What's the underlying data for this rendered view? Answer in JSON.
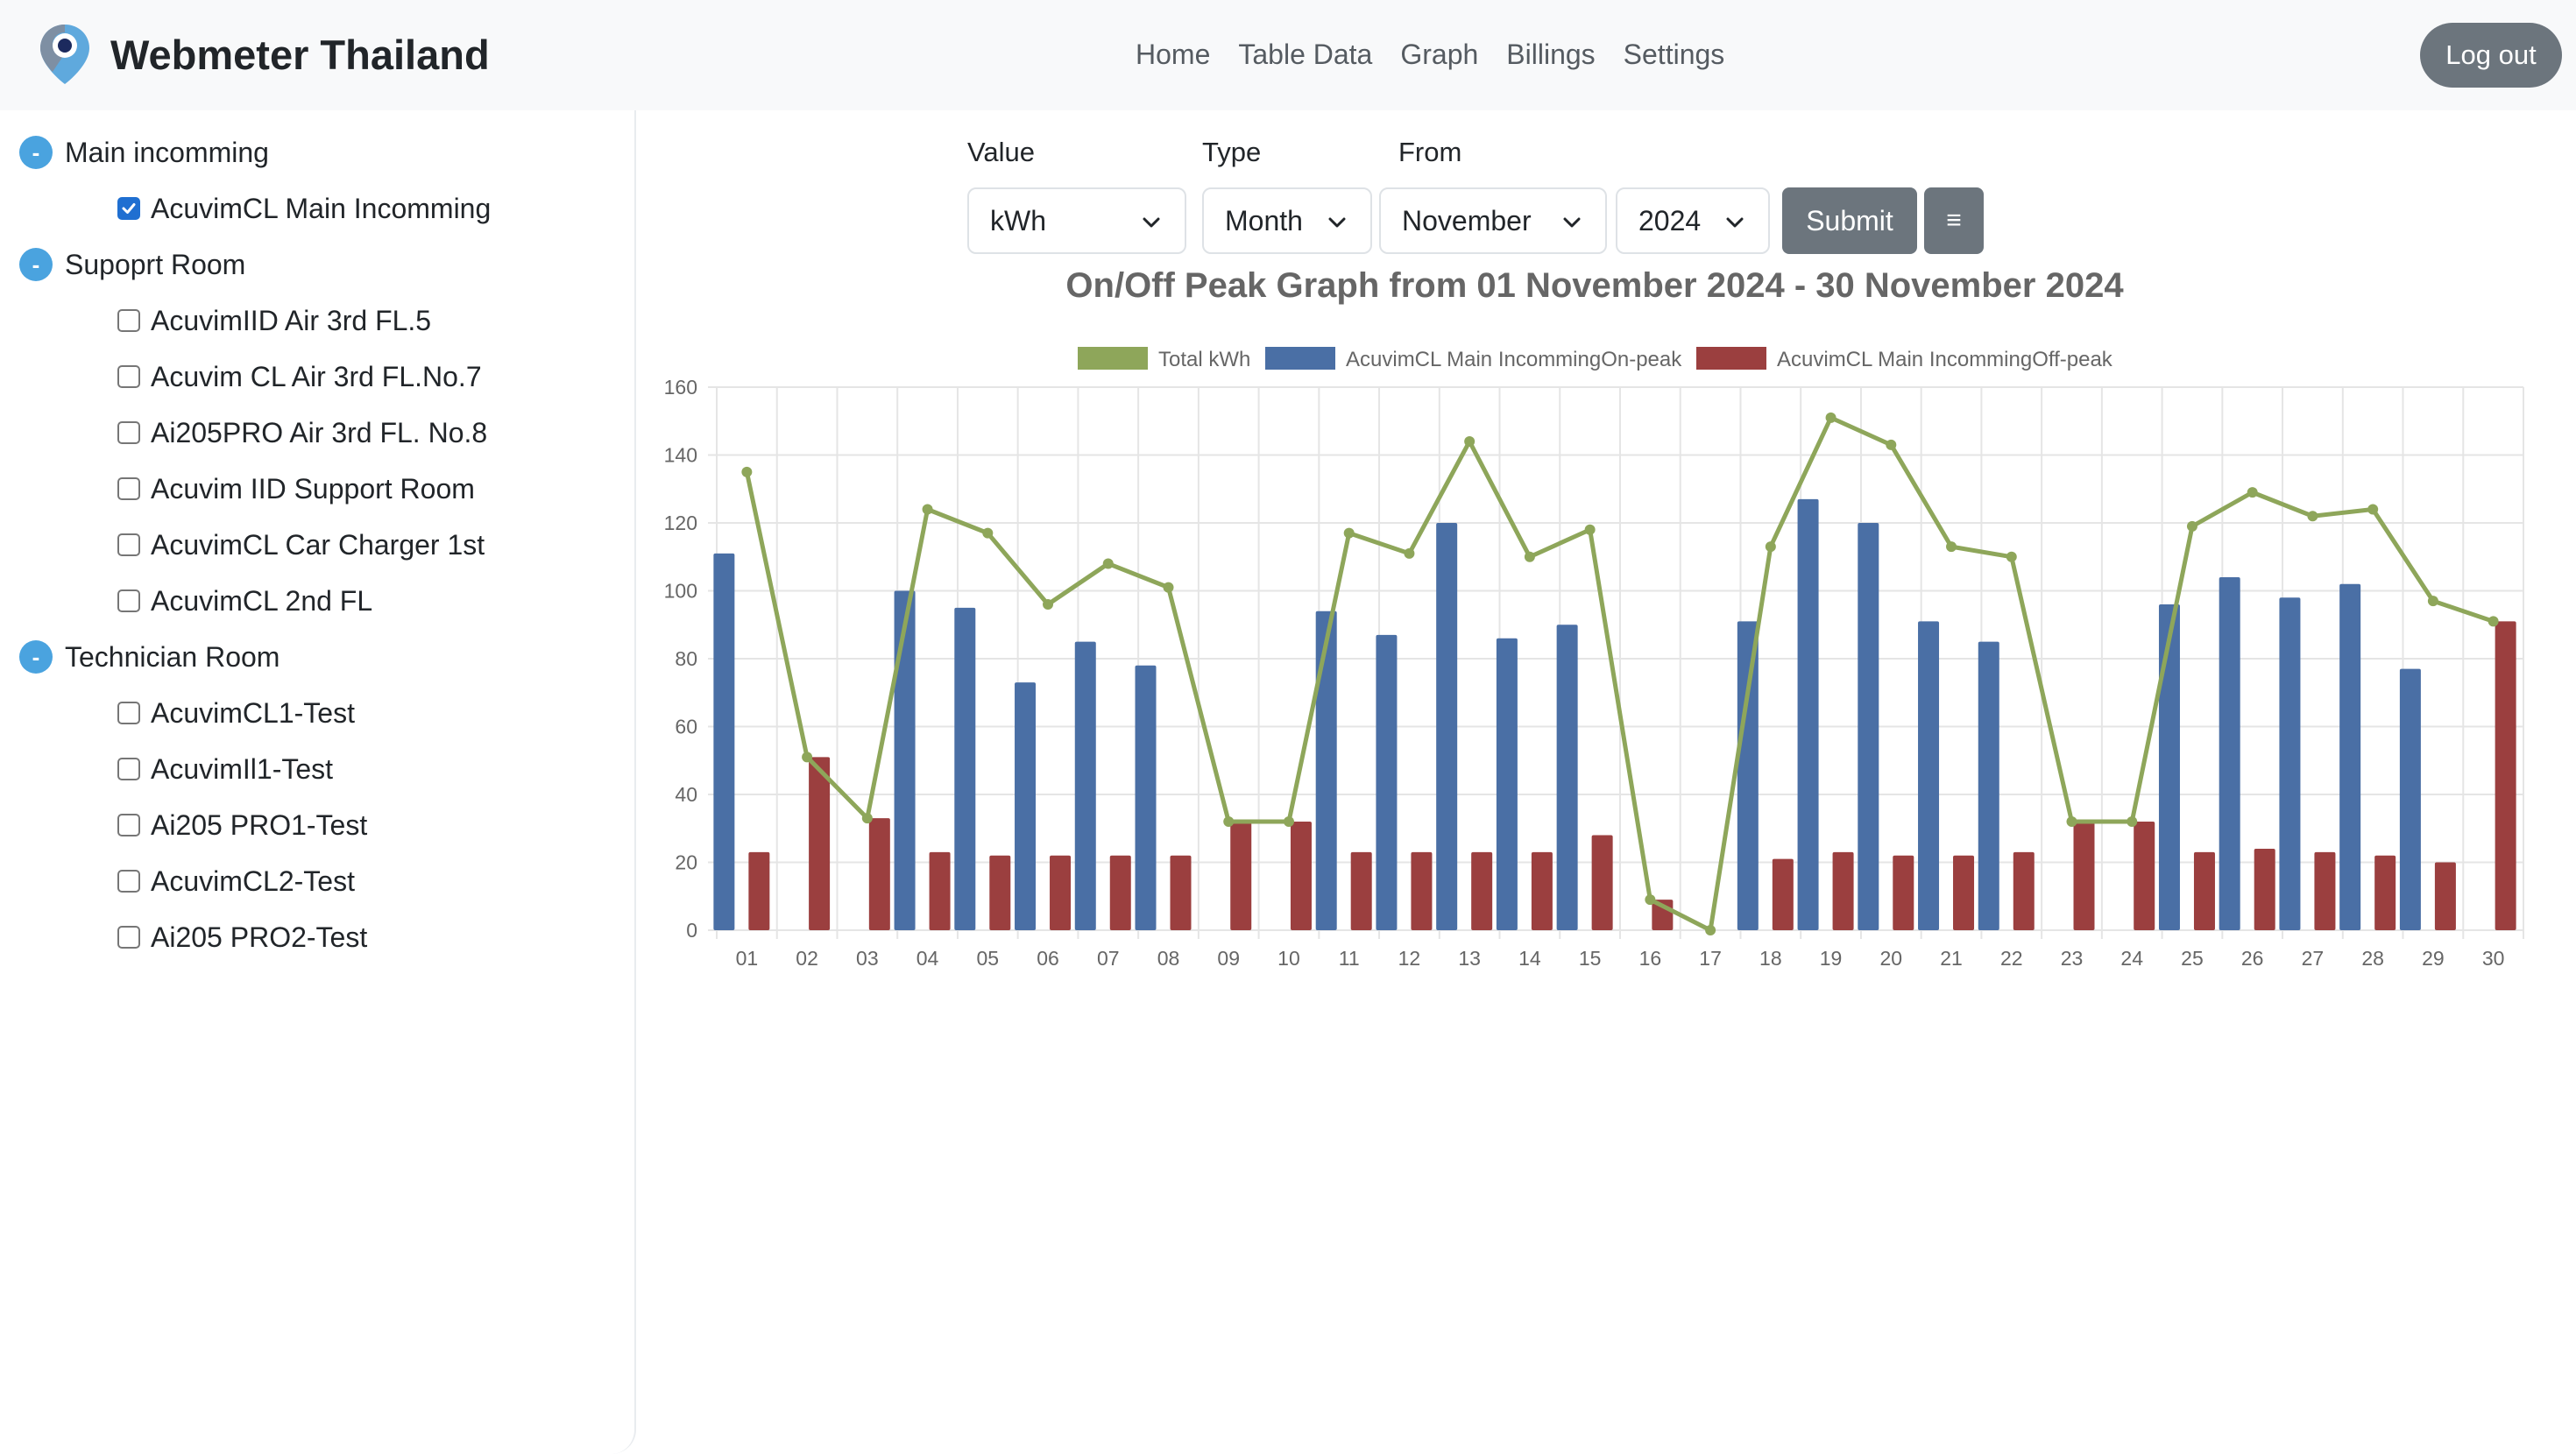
{
  "header": {
    "brand": "Webmeter Thailand",
    "nav": [
      "Home",
      "Table Data",
      "Graph",
      "Billings",
      "Settings"
    ],
    "logout": "Log out"
  },
  "sidebar": {
    "groups": [
      {
        "label": "Main incomming",
        "toggle": "-",
        "items": [
          {
            "label": "AcuvimCL Main Incomming",
            "checked": true
          }
        ]
      },
      {
        "label": "Supoprt Room",
        "toggle": "-",
        "items": [
          {
            "label": "AcuvimIID Air 3rd FL.5",
            "checked": false
          },
          {
            "label": "Acuvim CL Air 3rd FL.No.7",
            "checked": false
          },
          {
            "label": "Ai205PRO Air 3rd FL. No.8",
            "checked": false
          },
          {
            "label": "Acuvim IID Support Room",
            "checked": false
          },
          {
            "label": "AcuvimCL Car Charger 1st",
            "checked": false
          },
          {
            "label": "AcuvimCL 2nd FL",
            "checked": false
          }
        ]
      },
      {
        "label": "Technician Room",
        "toggle": "-",
        "items": [
          {
            "label": "AcuvimCL1-Test",
            "checked": false
          },
          {
            "label": "AcuvimIl1-Test",
            "checked": false
          },
          {
            "label": "Ai205 PRO1-Test",
            "checked": false
          },
          {
            "label": "AcuvimCL2-Test",
            "checked": false
          },
          {
            "label": "Ai205 PRO2-Test",
            "checked": false
          }
        ]
      }
    ]
  },
  "form": {
    "value_label": "Value",
    "type_label": "Type",
    "from_label": "From",
    "value_selected": "kWh",
    "type_selected": "Month",
    "month_selected": "November",
    "year_selected": "2024",
    "submit": "Submit",
    "menu_icon": "≡"
  },
  "colors": {
    "total": "#8ea65a",
    "on_peak": "#4a6fa5",
    "off_peak": "#9b3f3f",
    "grid": "#e5e5e5",
    "button": "#6c757d",
    "toggle": "#4aa3df"
  },
  "chart_data": {
    "type": "bar",
    "title": "On/Off Peak Graph from 01 November 2024 - 30 November 2024",
    "categories": [
      "01",
      "02",
      "03",
      "04",
      "05",
      "06",
      "07",
      "08",
      "09",
      "10",
      "11",
      "12",
      "13",
      "14",
      "15",
      "16",
      "17",
      "18",
      "19",
      "20",
      "21",
      "22",
      "23",
      "24",
      "25",
      "26",
      "27",
      "28",
      "29",
      "30"
    ],
    "ylim": [
      0,
      160
    ],
    "yticks": [
      0,
      20,
      40,
      60,
      80,
      100,
      120,
      140,
      160
    ],
    "grid": true,
    "legend": "top-center",
    "series": [
      {
        "name": "Total kWh",
        "type": "line",
        "values": [
          135,
          51,
          33,
          124,
          117,
          96,
          108,
          101,
          32,
          32,
          117,
          111,
          144,
          110,
          118,
          9,
          0,
          113,
          151,
          143,
          113,
          110,
          32,
          32,
          119,
          129,
          122,
          124,
          97,
          91
        ]
      },
      {
        "name": "AcuvimCL Main IncommingOn-peak",
        "type": "bar",
        "values": [
          111,
          0,
          0,
          100,
          95,
          73,
          85,
          78,
          0,
          0,
          94,
          87,
          120,
          86,
          90,
          0,
          0,
          91,
          127,
          120,
          91,
          85,
          0,
          0,
          96,
          104,
          98,
          102,
          77,
          0
        ]
      },
      {
        "name": "AcuvimCL Main IncommingOff-peak",
        "type": "bar",
        "values": [
          23,
          51,
          33,
          23,
          22,
          22,
          22,
          22,
          32,
          32,
          23,
          23,
          23,
          23,
          28,
          9,
          0,
          21,
          23,
          22,
          22,
          23,
          32,
          32,
          23,
          24,
          23,
          22,
          20,
          91
        ]
      }
    ]
  }
}
